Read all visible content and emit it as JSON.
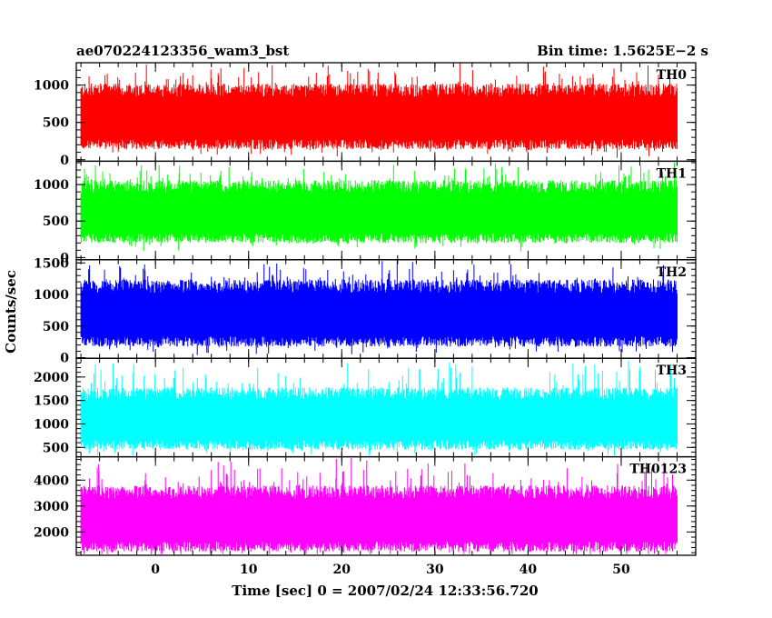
{
  "chart_data": {
    "type": "line",
    "title_left": "ae070224123356_wam3_bst",
    "title_right": "Bin time: 1.5625E−2 s",
    "xlabel": "Time [sec] 0 = 2007/02/24 12:33:56.720",
    "ylabel": "Counts/sec",
    "xlim": [
      -8.5,
      58
    ],
    "data_xrange": [
      -8,
      56
    ],
    "bin_time": 0.015625,
    "x_ticks": [
      "0",
      "10",
      "20",
      "30",
      "40",
      "50"
    ],
    "x_tick_values": [
      0,
      10,
      20,
      30,
      40,
      50
    ],
    "panels": [
      {
        "name": "TH0",
        "color": "#ff0000",
        "ylim": [
          -20,
          1300
        ],
        "y_ticks": [
          "0",
          "500",
          "1000"
        ],
        "y_tick_values": [
          0,
          500,
          1000
        ],
        "mean": 590,
        "spread": 430,
        "peak_min": 900,
        "peak_max": 1300,
        "floor_min": 20,
        "floor_max": 260
      },
      {
        "name": "TH1",
        "color": "#00ff00",
        "ylim": [
          -30,
          1320
        ],
        "y_ticks": [
          "0",
          "500",
          "1000"
        ],
        "y_tick_values": [
          0,
          500,
          1000
        ],
        "mean": 640,
        "spread": 420,
        "peak_min": 950,
        "peak_max": 1330,
        "floor_min": 30,
        "floor_max": 230
      },
      {
        "name": "TH2",
        "color": "#0000ff",
        "ylim": [
          -10,
          1550
        ],
        "y_ticks": [
          "0",
          "500",
          "1000",
          "1500"
        ],
        "y_tick_values": [
          0,
          500,
          1000,
          1500
        ],
        "mean": 720,
        "spread": 520,
        "peak_min": 1050,
        "peak_max": 1560,
        "floor_min": 40,
        "floor_max": 300
      },
      {
        "name": "TH3",
        "color": "#00ffff",
        "ylim": [
          300,
          2400
        ],
        "y_ticks": [
          "500",
          "1000",
          "1500",
          "2000"
        ],
        "y_tick_values": [
          500,
          1000,
          1500,
          2000
        ],
        "mean": 1130,
        "spread": 650,
        "peak_min": 1650,
        "peak_max": 2400,
        "floor_min": 330,
        "floor_max": 650
      },
      {
        "name": "TH0123",
        "color": "#ff00ff",
        "ylim": [
          1100,
          4900
        ],
        "y_ticks": [
          "2000",
          "3000",
          "4000"
        ],
        "y_tick_values": [
          2000,
          3000,
          4000
        ],
        "mean": 2550,
        "spread": 1250,
        "peak_min": 3400,
        "peak_max": 4900,
        "floor_min": 1150,
        "floor_max": 1750
      }
    ]
  }
}
